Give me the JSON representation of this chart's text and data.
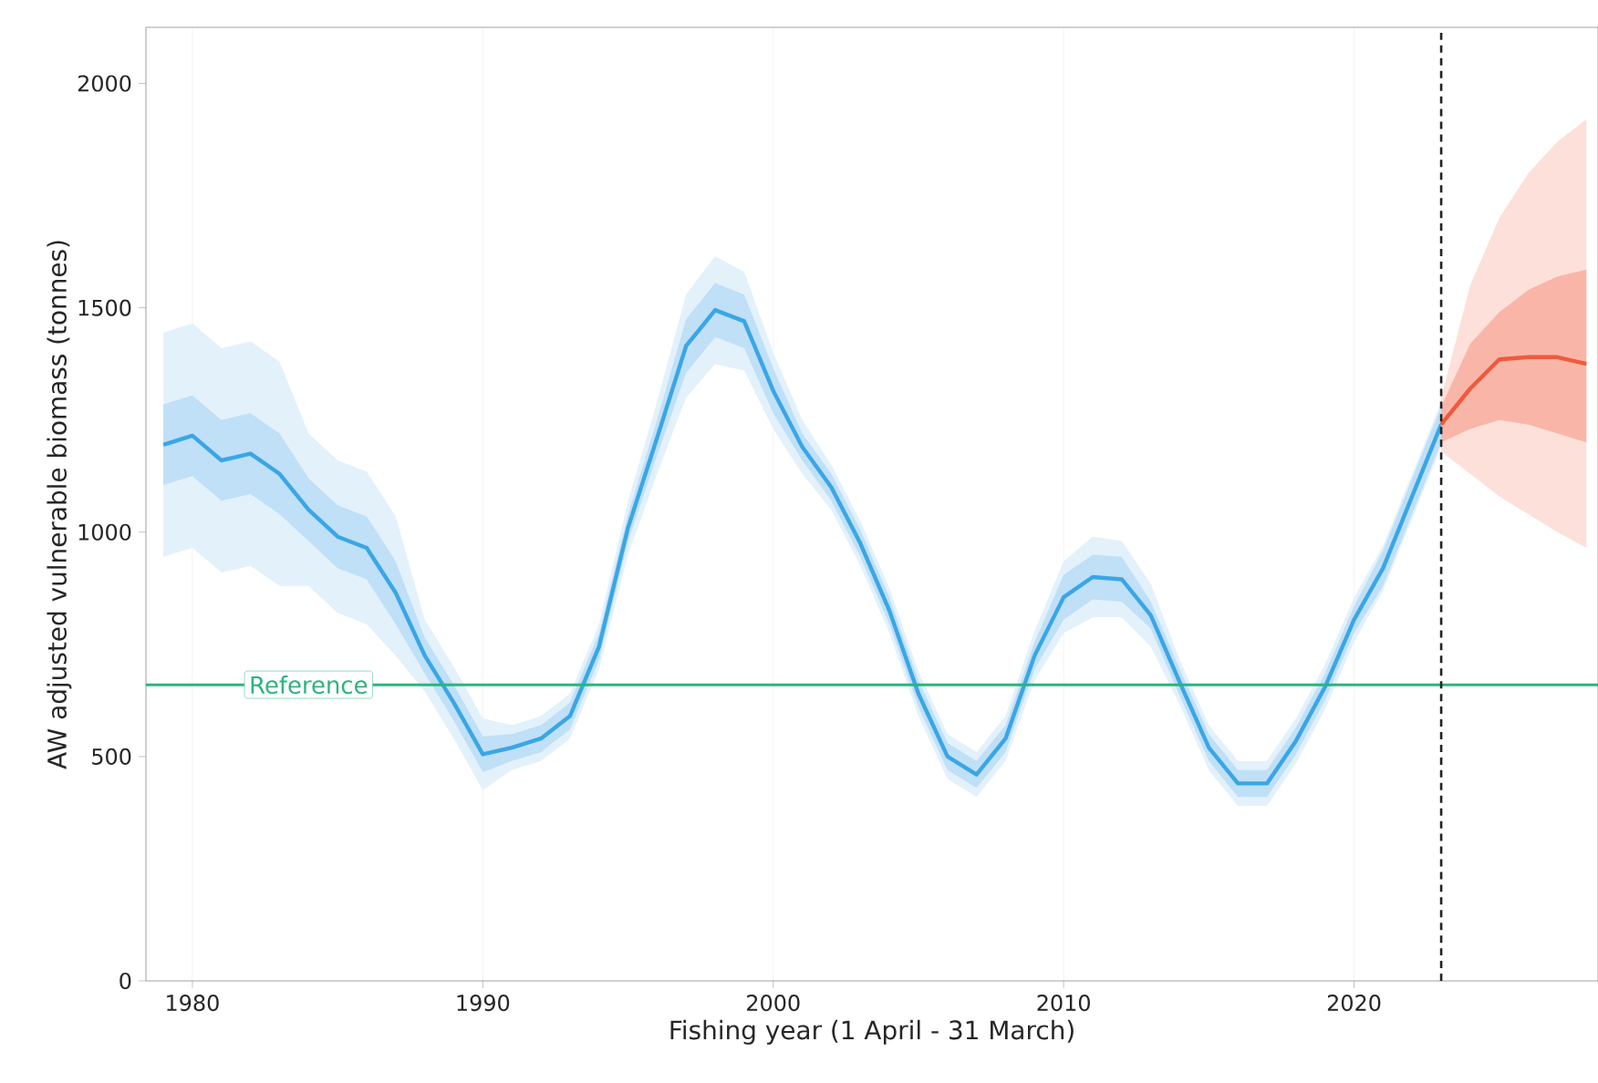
{
  "chart_data": {
    "type": "line",
    "xlabel": "Fishing year (1 April - 31 March)",
    "ylabel": "AW adjusted vulnerable biomass (tonnes)",
    "xlim": [
      1978.4,
      2028.4
    ],
    "xticks": [
      1980,
      1990,
      2000,
      2010,
      2020
    ],
    "ylim": [
      0,
      2125
    ],
    "yticks": [
      0,
      500,
      1000,
      1500,
      2000
    ],
    "grid": "x",
    "line_style": "solid",
    "marker": "none",
    "series": [
      {
        "type": "area",
        "color": "#e3f1fb",
        "x": [
          1979,
          1980,
          1981,
          1982,
          1983,
          1984,
          1985,
          1986,
          1987,
          1988,
          1989,
          1990,
          1991,
          1992,
          1993,
          1994,
          1995,
          1996,
          1997,
          1998,
          1999,
          2000,
          2001,
          2002,
          2003,
          2004,
          2005,
          2006,
          2007,
          2008,
          2009,
          2010,
          2011,
          2012,
          2013,
          2014,
          2015,
          2016,
          2017,
          2018,
          2019,
          2020,
          2021,
          2022,
          2023
        ],
        "values": [
          null,
          null,
          null,
          null,
          null,
          null,
          null,
          null,
          null,
          null,
          null,
          null,
          null,
          null,
          null,
          null,
          null,
          null,
          null,
          null,
          null,
          null,
          null,
          null,
          null,
          null,
          null,
          null,
          null,
          null,
          null,
          null,
          null,
          null,
          null,
          null,
          null,
          null,
          null,
          null,
          null,
          null,
          null,
          null,
          null
        ],
        "lower": [
          945,
          965,
          910,
          925,
          880,
          880,
          820,
          795,
          725,
          645,
          540,
          425,
          470,
          490,
          540,
          695,
          950,
          1130,
          1300,
          1375,
          1360,
          1230,
          1130,
          1050,
          925,
          775,
          590,
          450,
          410,
          490,
          670,
          775,
          810,
          810,
          745,
          615,
          470,
          390,
          390,
          485,
          605,
          755,
          870,
          1030,
          1190
        ],
        "upper": [
          1445,
          1465,
          1410,
          1425,
          1380,
          1220,
          1160,
          1135,
          1035,
          805,
          700,
          585,
          570,
          590,
          640,
          795,
          1070,
          1290,
          1530,
          1615,
          1580,
          1400,
          1250,
          1150,
          1025,
          875,
          690,
          550,
          510,
          590,
          780,
          935,
          990,
          980,
          885,
          715,
          570,
          490,
          490,
          585,
          705,
          855,
          970,
          1130,
          1290
        ]
      },
      {
        "type": "area",
        "color": "#bfe0f7",
        "x": [
          1979,
          1980,
          1981,
          1982,
          1983,
          1984,
          1985,
          1986,
          1987,
          1988,
          1989,
          1990,
          1991,
          1992,
          1993,
          1994,
          1995,
          1996,
          1997,
          1998,
          1999,
          2000,
          2001,
          2002,
          2003,
          2004,
          2005,
          2006,
          2007,
          2008,
          2009,
          2010,
          2011,
          2012,
          2013,
          2014,
          2015,
          2016,
          2017,
          2018,
          2019,
          2020,
          2021,
          2022,
          2023
        ],
        "values": [
          null,
          null,
          null,
          null,
          null,
          null,
          null,
          null,
          null,
          null,
          null,
          null,
          null,
          null,
          null,
          null,
          null,
          null,
          null,
          null,
          null,
          null,
          null,
          null,
          null,
          null,
          null,
          null,
          null,
          null,
          null,
          null,
          null,
          null,
          null,
          null,
          null,
          null,
          null,
          null,
          null,
          null,
          null,
          null,
          null
        ],
        "lower": [
          1105,
          1125,
          1070,
          1085,
          1040,
          980,
          920,
          895,
          795,
          685,
          580,
          465,
          490,
          510,
          560,
          715,
          980,
          1170,
          1355,
          1435,
          1410,
          1265,
          1160,
          1070,
          945,
          795,
          610,
          470,
          430,
          510,
          695,
          805,
          850,
          845,
          785,
          635,
          490,
          410,
          410,
          505,
          625,
          775,
          880,
          1040,
          1200
        ],
        "upper": [
          1285,
          1305,
          1250,
          1265,
          1220,
          1120,
          1060,
          1035,
          935,
          765,
          660,
          545,
          550,
          570,
          620,
          775,
          1040,
          1250,
          1475,
          1555,
          1530,
          1365,
          1220,
          1130,
          1005,
          855,
          670,
          530,
          490,
          570,
          755,
          905,
          950,
          945,
          845,
          695,
          550,
          470,
          470,
          565,
          685,
          835,
          960,
          1120,
          1280
        ]
      },
      {
        "color": "#3aa6e6",
        "x": [
          1979,
          1980,
          1981,
          1982,
          1983,
          1984,
          1985,
          1986,
          1987,
          1988,
          1989,
          1990,
          1991,
          1992,
          1993,
          1994,
          1995,
          1996,
          1997,
          1998,
          1999,
          2000,
          2001,
          2002,
          2003,
          2004,
          2005,
          2006,
          2007,
          2008,
          2009,
          2010,
          2011,
          2012,
          2013,
          2014,
          2015,
          2016,
          2017,
          2018,
          2019,
          2020,
          2021,
          2022,
          2023
        ],
        "values": [
          1195,
          1215,
          1160,
          1175,
          1130,
          1050,
          990,
          965,
          865,
          725,
          620,
          505,
          520,
          540,
          590,
          745,
          1010,
          1210,
          1415,
          1495,
          1470,
          1315,
          1190,
          1100,
          975,
          825,
          640,
          500,
          460,
          540,
          725,
          855,
          900,
          895,
          815,
          665,
          520,
          440,
          440,
          535,
          655,
          805,
          920,
          1080,
          1240
        ]
      },
      {
        "type": "area",
        "color": "#fde0d9",
        "x": [
          2023,
          2024,
          2025,
          2026,
          2027,
          2028
        ],
        "values": [
          null,
          null,
          null,
          null,
          null,
          null
        ],
        "lower": [
          1180,
          1130,
          1080,
          1040,
          1000,
          965
        ],
        "upper": [
          1300,
          1550,
          1700,
          1800,
          1870,
          1920
        ]
      },
      {
        "type": "area",
        "color": "#f9b6a8",
        "x": [
          2023,
          2024,
          2025,
          2026,
          2027,
          2028
        ],
        "values": [
          null,
          null,
          null,
          null,
          null,
          null
        ],
        "lower": [
          1200,
          1230,
          1250,
          1240,
          1220,
          1200
        ],
        "upper": [
          1280,
          1420,
          1490,
          1540,
          1570,
          1585
        ]
      },
      {
        "color": "#f05a3c",
        "x": [
          2023,
          2024,
          2025,
          2026,
          2027,
          2028
        ],
        "values": [
          1240,
          1320,
          1385,
          1390,
          1390,
          1375
        ]
      }
    ],
    "ref_lines": [
      {
        "axis": "y",
        "value": 660,
        "label": "Reference",
        "color": "#2db37d",
        "line_style": "solid"
      },
      {
        "axis": "x",
        "value": 2023,
        "color": "#222222",
        "line_style": "dashed"
      }
    ]
  }
}
